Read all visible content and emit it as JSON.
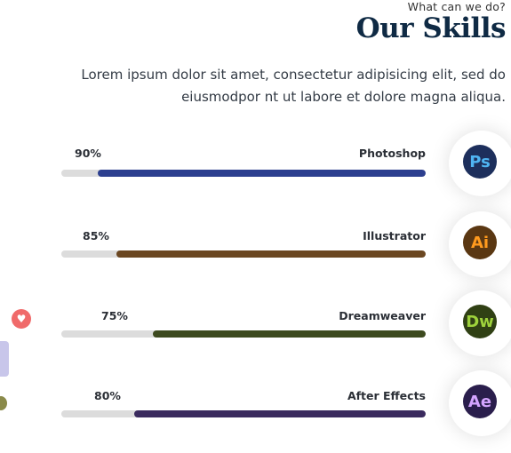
{
  "header": {
    "subtitle": "What can we do?",
    "title": "Our Skills",
    "description": "Lorem ipsum dolor sit amet, consectetur adipisicing elit, sed do eiusmodpor nt ut labore et dolore magna aliqua."
  },
  "skills": [
    {
      "name": "Photoshop",
      "percent_label": "90%",
      "percent": 90,
      "logo_text": "Ps",
      "bar_color": "#2c3f8f",
      "logo_bg": "#1d2f5c",
      "logo_fg": "#4fb4f2"
    },
    {
      "name": "Illustrator",
      "percent_label": "85%",
      "percent": 85,
      "logo_text": "Ai",
      "bar_color": "#6b4721",
      "logo_bg": "#5a3712",
      "logo_fg": "#ff9a1e"
    },
    {
      "name": "Dreamweaver",
      "percent_label": "75%",
      "percent": 75,
      "logo_text": "Dw",
      "bar_color": "#3d4a1f",
      "logo_bg": "#304014",
      "logo_fg": "#9ed23c"
    },
    {
      "name": "After Effects",
      "percent_label": "80%",
      "percent": 80,
      "logo_text": "Ae",
      "bar_color": "#3a2a5e",
      "logo_bg": "#2a1e4c",
      "logo_fg": "#d4a4ff"
    }
  ],
  "side": {
    "heart_icon": "heart-icon"
  }
}
